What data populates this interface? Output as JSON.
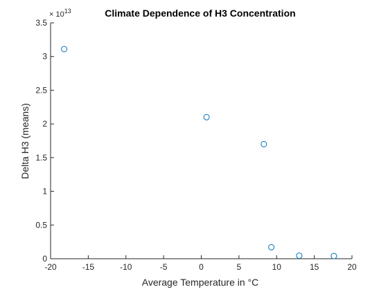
{
  "chart_data": {
    "type": "scatter",
    "title": "Climate Dependence of H3 Concentration",
    "xlabel": "Average Temperature in °C",
    "ylabel": "Delta H3 (means)",
    "xlim": [
      -20,
      20
    ],
    "ylim": [
      0,
      35000000000000
    ],
    "x_ticks": [
      -20,
      -15,
      -10,
      -5,
      0,
      5,
      10,
      15,
      20
    ],
    "x_tick_labels": [
      "-20",
      "-15",
      "-10",
      "-5",
      "0",
      "5",
      "10",
      "15",
      "20"
    ],
    "y_ticks": [
      0,
      5000000000000,
      10000000000000,
      15000000000000,
      20000000000000,
      25000000000000,
      30000000000000,
      35000000000000
    ],
    "y_tick_labels": [
      "0",
      "0.5",
      "1",
      "1.5",
      "2",
      "2.5",
      "3",
      "3.5"
    ],
    "y_exponent_label": "× 10",
    "y_exponent_power": "13",
    "grid": false,
    "marker": "open-circle",
    "marker_color": "#0072BD",
    "axis_color": "#262626",
    "series": [
      {
        "x": [
          -18.2,
          0.7,
          8.3,
          9.3,
          13.0,
          17.6
        ],
        "y": [
          31100000000000,
          21000000000000,
          17000000000000,
          1700000000000,
          450000000000,
          400000000000
        ]
      }
    ]
  }
}
